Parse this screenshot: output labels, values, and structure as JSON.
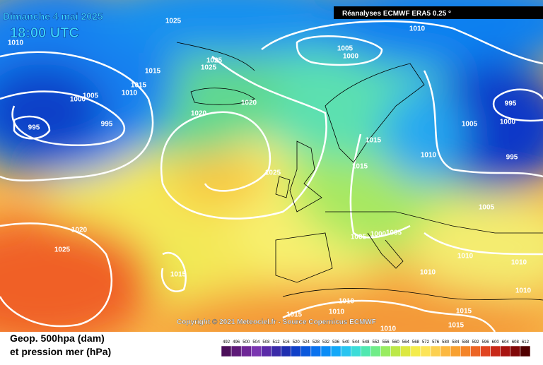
{
  "header": {
    "date": "Dimanche 4 mai 2025",
    "time": "18:00 UTC",
    "source": "Réanalyses ECMWF ERA5 0.25 °"
  },
  "copyright": "Copyright © 2021 Meteociel.fr - Source Copernicus ECMWF",
  "legend": {
    "line1": "Geop. 500hpa (dam)",
    "line2": "et pression mer (hPa)",
    "scale": [
      492,
      496,
      500,
      504,
      508,
      512,
      516,
      520,
      524,
      528,
      532,
      536,
      540,
      544,
      548,
      552,
      556,
      560,
      564,
      568,
      572,
      576,
      580,
      584,
      588,
      592,
      596,
      600,
      604,
      608,
      612
    ],
    "colors": [
      "#4b0f5a",
      "#5e1a78",
      "#6e2796",
      "#7a36b0",
      "#5a2aa8",
      "#3a2aa8",
      "#1f2fb0",
      "#1040c8",
      "#0a58dc",
      "#0a72ee",
      "#0a8cf6",
      "#14a8f8",
      "#28c4f0",
      "#3cdcd8",
      "#50e8b0",
      "#70ec88",
      "#98ec60",
      "#bce848",
      "#dce840",
      "#f4ec4c",
      "#fce458",
      "#fcd050",
      "#fcb840",
      "#f8a030",
      "#f48428",
      "#ec6424",
      "#e04420",
      "#c82818",
      "#a81410",
      "#800808",
      "#500000"
    ]
  },
  "isobar_labels": [
    "1025",
    "1010",
    "1010",
    "1005",
    "1000",
    "1025",
    "1015",
    "1025",
    "1015",
    "1010",
    "1005",
    "1000",
    "1020",
    "1020",
    "995",
    "995",
    "995",
    "1005",
    "1000",
    "1015",
    "1010",
    "995",
    "1025",
    "1015",
    "1005",
    "1020",
    "1025",
    "1005",
    "1000",
    "1005",
    "1010",
    "1010",
    "1015",
    "1010",
    "1010",
    "1010",
    "1010",
    "1015",
    "1015",
    "1015",
    "1010"
  ]
}
